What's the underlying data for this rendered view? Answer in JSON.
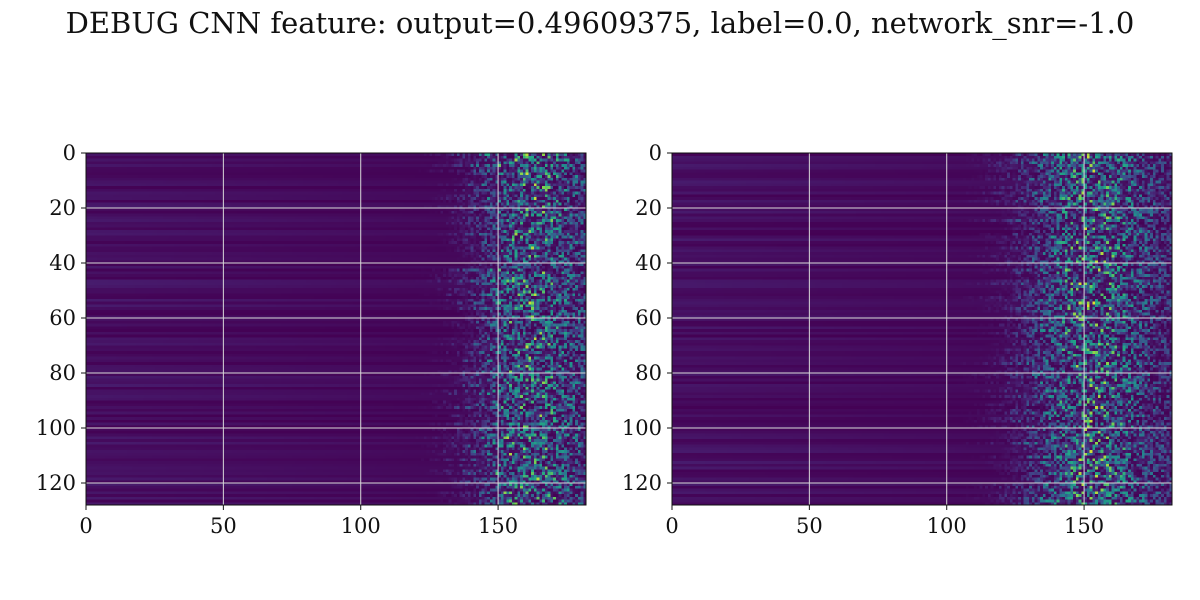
{
  "figure": {
    "title": "DEBUG CNN feature: output=0.49609375, label=0.0, network_snr=-1.0"
  },
  "chart_data": [
    {
      "type": "heatmap",
      "title": "",
      "xlabel": "",
      "ylabel": "",
      "xlim": [
        0,
        182
      ],
      "ylim": [
        128,
        0
      ],
      "x_ticks": [
        0,
        50,
        100,
        150
      ],
      "x_tick_labels": [
        "0",
        "50",
        "100",
        "150"
      ],
      "y_ticks": [
        0,
        20,
        40,
        60,
        80,
        100,
        120
      ],
      "y_tick_labels": [
        "0",
        "20",
        "40",
        "60",
        "80",
        "100",
        "120"
      ],
      "grid": true,
      "colormap": "viridis",
      "shape": [
        128,
        182
      ],
      "description_of_values": "Low values (dark purple) across columns 0-~125 with faint horizontal banding; bright noisy speckle (green/yellow) concentrated in columns ~130-182 with peak onset near column 150.",
      "onset_column": 128,
      "peak_column": 160
    },
    {
      "type": "heatmap",
      "title": "",
      "xlabel": "",
      "ylabel": "",
      "xlim": [
        0,
        182
      ],
      "ylim": [
        128,
        0
      ],
      "x_ticks": [
        0,
        50,
        100,
        150
      ],
      "x_tick_labels": [
        "0",
        "50",
        "100",
        "150"
      ],
      "y_ticks": [
        0,
        20,
        40,
        60,
        80,
        100,
        120
      ],
      "y_tick_labels": [
        "0",
        "20",
        "40",
        "60",
        "80",
        "100",
        "120"
      ],
      "grid": true,
      "colormap": "viridis",
      "shape": [
        128,
        182
      ],
      "description_of_values": "Low values (dark purple) across columns 0-~110 with faint horizontal banding; noisy speckle in columns ~115-182, strongest around column 150.",
      "onset_column": 112,
      "peak_column": 152
    }
  ],
  "colors": {
    "grid": "#d9d9d9",
    "axis": "#111111",
    "background": "#ffffff"
  }
}
